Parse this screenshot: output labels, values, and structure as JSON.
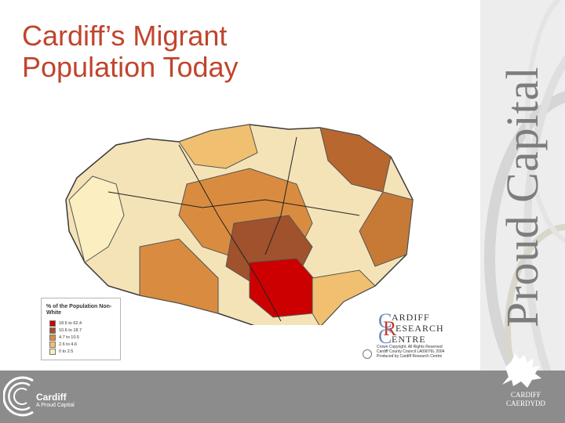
{
  "slide": {
    "title_line1": "Cardiff’s Migrant",
    "title_line2": "Population Today",
    "vertical_title": "Proud Capital"
  },
  "legend": {
    "title": "% of the Population Non-White",
    "items": [
      {
        "label": "18.6 to 62.4",
        "color": "#cc0000"
      },
      {
        "label": "10.6 to 18.7",
        "color": "#a0522d"
      },
      {
        "label": "4.7 to 10.5",
        "color": "#d98c3f"
      },
      {
        "label": "2.6 to 4.6",
        "color": "#f0c070"
      },
      {
        "label": "0 to 2.5",
        "color": "#fbeec0"
      }
    ]
  },
  "crc_logo": {
    "letter_c1": "C",
    "letter_r": "R",
    "letter_c2": "C",
    "word1": "ARDIFF",
    "word2": "ESEARCH",
    "word3": "ENTRE"
  },
  "crown": {
    "line1": "Crown Copyright. All Rights Reserved",
    "line2": "Cardiff County Council LA09076L 2004",
    "line3": "Produced by Cardiff Research Centre"
  },
  "footer": {
    "brand": "Cardiff",
    "tagline": "A Proud Capital",
    "council_en": "CARDIFF",
    "council_cy": "CAERDYDD"
  },
  "colors": {
    "title": "#c0452d",
    "footer": "#8c8c8c",
    "panel": "#ededed"
  }
}
